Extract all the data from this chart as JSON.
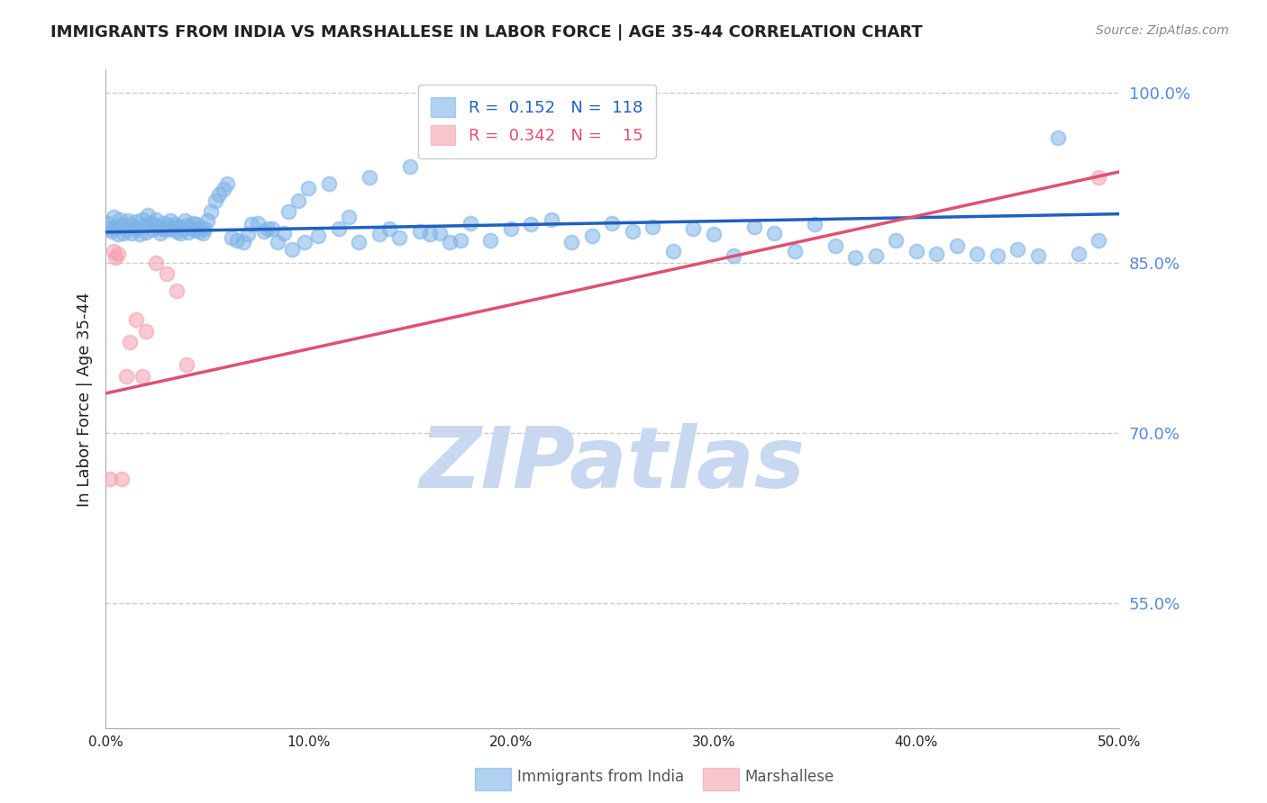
{
  "title": "IMMIGRANTS FROM INDIA VS MARSHALLESE IN LABOR FORCE | AGE 35-44 CORRELATION CHART",
  "source": "Source: ZipAtlas.com",
  "ylabel": "In Labor Force | Age 35-44",
  "xmin": 0.0,
  "xmax": 0.5,
  "ymin": 0.44,
  "ymax": 1.02,
  "yticks": [
    0.55,
    0.7,
    0.85,
    1.0
  ],
  "ytick_labels": [
    "55.0%",
    "70.0%",
    "85.0%",
    "100.0%"
  ],
  "legend_blue_R": "0.152",
  "legend_blue_N": "118",
  "legend_pink_R": "0.342",
  "legend_pink_N": "15",
  "blue_color": "#7EB3E8",
  "pink_color": "#F4A0B0",
  "blue_line_color": "#2060C0",
  "pink_line_color": "#E05070",
  "watermark": "ZIPatlas",
  "watermark_color": "#C8D8F0",
  "blue_scatter_x": [
    0.001,
    0.002,
    0.003,
    0.004,
    0.005,
    0.006,
    0.007,
    0.008,
    0.009,
    0.01,
    0.011,
    0.012,
    0.013,
    0.014,
    0.015,
    0.016,
    0.017,
    0.018,
    0.019,
    0.02,
    0.021,
    0.022,
    0.023,
    0.024,
    0.025,
    0.026,
    0.027,
    0.028,
    0.029,
    0.03,
    0.031,
    0.032,
    0.033,
    0.034,
    0.035,
    0.036,
    0.037,
    0.038,
    0.039,
    0.04,
    0.041,
    0.042,
    0.043,
    0.044,
    0.045,
    0.046,
    0.047,
    0.048,
    0.049,
    0.05,
    0.052,
    0.054,
    0.056,
    0.058,
    0.06,
    0.065,
    0.07,
    0.075,
    0.08,
    0.085,
    0.09,
    0.095,
    0.1,
    0.11,
    0.12,
    0.13,
    0.14,
    0.15,
    0.16,
    0.17,
    0.18,
    0.19,
    0.2,
    0.21,
    0.22,
    0.23,
    0.24,
    0.25,
    0.26,
    0.27,
    0.28,
    0.29,
    0.3,
    0.31,
    0.32,
    0.33,
    0.34,
    0.35,
    0.36,
    0.37,
    0.38,
    0.39,
    0.4,
    0.41,
    0.42,
    0.43,
    0.44,
    0.45,
    0.46,
    0.47,
    0.48,
    0.49,
    0.062,
    0.068,
    0.072,
    0.078,
    0.082,
    0.088,
    0.092,
    0.098,
    0.105,
    0.115,
    0.125,
    0.135,
    0.145,
    0.155,
    0.165,
    0.175
  ],
  "blue_scatter_y": [
    0.885,
    0.88,
    0.878,
    0.89,
    0.882,
    0.875,
    0.888,
    0.883,
    0.876,
    0.879,
    0.887,
    0.884,
    0.876,
    0.881,
    0.886,
    0.88,
    0.875,
    0.888,
    0.883,
    0.877,
    0.892,
    0.885,
    0.879,
    0.884,
    0.888,
    0.882,
    0.876,
    0.88,
    0.885,
    0.879,
    0.883,
    0.887,
    0.88,
    0.884,
    0.878,
    0.882,
    0.876,
    0.88,
    0.887,
    0.883,
    0.877,
    0.881,
    0.885,
    0.879,
    0.884,
    0.878,
    0.882,
    0.876,
    0.88,
    0.887,
    0.895,
    0.905,
    0.91,
    0.915,
    0.92,
    0.87,
    0.875,
    0.885,
    0.88,
    0.868,
    0.895,
    0.905,
    0.916,
    0.92,
    0.89,
    0.925,
    0.88,
    0.935,
    0.875,
    0.868,
    0.885,
    0.87,
    0.88,
    0.884,
    0.888,
    0.868,
    0.874,
    0.885,
    0.878,
    0.882,
    0.86,
    0.88,
    0.875,
    0.856,
    0.882,
    0.876,
    0.86,
    0.884,
    0.865,
    0.855,
    0.856,
    0.87,
    0.86,
    0.858,
    0.865,
    0.858,
    0.856,
    0.862,
    0.856,
    0.96,
    0.858,
    0.87,
    0.872,
    0.868,
    0.884,
    0.878,
    0.88,
    0.876,
    0.862,
    0.868,
    0.874,
    0.88,
    0.868,
    0.875,
    0.872,
    0.878,
    0.876,
    0.87
  ],
  "pink_scatter_x": [
    0.002,
    0.004,
    0.005,
    0.006,
    0.008,
    0.01,
    0.012,
    0.015,
    0.018,
    0.02,
    0.025,
    0.03,
    0.035,
    0.04,
    0.49
  ],
  "pink_scatter_y": [
    0.66,
    0.86,
    0.855,
    0.858,
    0.66,
    0.75,
    0.78,
    0.8,
    0.75,
    0.79,
    0.85,
    0.84,
    0.825,
    0.76,
    0.925
  ],
  "blue_line_x0": 0.0,
  "blue_line_x1": 0.5,
  "blue_line_y0": 0.877,
  "blue_line_y1": 0.893,
  "pink_line_x0": 0.0,
  "pink_line_x1": 0.5,
  "pink_line_y0": 0.735,
  "pink_line_y1": 0.93,
  "background_color": "#FFFFFF",
  "title_color": "#222222",
  "source_color": "#888888",
  "ylabel_color": "#222222",
  "axis_color": "#AAAAAA",
  "grid_color": "#CCCCCC",
  "right_tick_color": "#5588DD"
}
